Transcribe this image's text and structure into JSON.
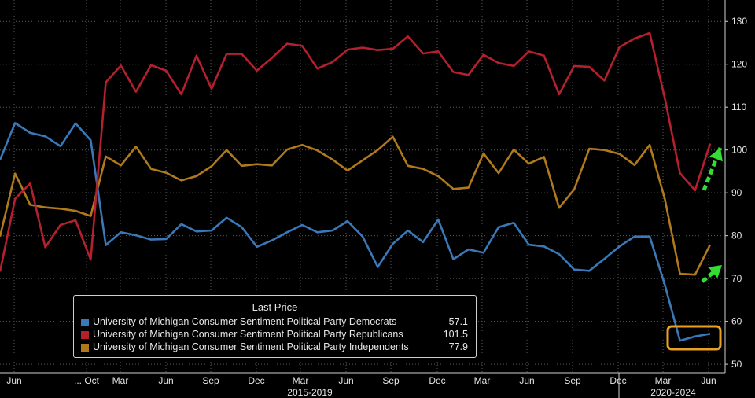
{
  "chart_data": {
    "type": "line",
    "ylim": [
      48,
      135
    ],
    "yticks": [
      50,
      60,
      70,
      80,
      90,
      100,
      110,
      120,
      130
    ],
    "grid": true,
    "legend_position": "bottom-left",
    "x_tick_labels": [
      "Jun",
      "... Oct",
      "Mar",
      "Jun",
      "Sep",
      "Dec",
      "Mar",
      "Jun",
      "Sep",
      "Dec",
      "Mar",
      "Jun",
      "Sep",
      "Dec",
      "Mar",
      "Jun"
    ],
    "x_period_labels": [
      "2015-2019",
      "2020-2024"
    ],
    "legend": {
      "title": "Last Price",
      "entries": [
        {
          "name": "University of Michigan Consumer Sentiment Political Party Democrats",
          "value": "57.1"
        },
        {
          "name": "University of Michigan Consumer Sentiment Political Party Republicans",
          "value": "101.5"
        },
        {
          "name": "University of Michigan Consumer Sentiment Political Party Independents",
          "value": "77.9"
        }
      ]
    },
    "series": [
      {
        "name": "University of Michigan Consumer Sentiment Political Party Democrats",
        "color": "#3a78b8",
        "values": [
          97.7,
          106.3,
          104,
          103.2,
          100.9,
          106.2,
          102.3,
          77.8,
          80.8,
          80.1,
          79.1,
          79.2,
          82.7,
          81,
          81.2,
          84.2,
          82,
          77.4,
          78.9,
          80.8,
          82.5,
          80.8,
          81.2,
          83.4,
          79.8,
          72.7,
          78.1,
          81.2,
          78.5,
          83.8,
          74.5,
          76.8,
          76,
          82,
          83,
          77.9,
          77.5,
          75.7,
          72.1,
          71.8,
          74.6,
          77.5,
          79.8,
          79.8,
          68.5,
          55.5,
          56.5,
          57.1
        ]
      },
      {
        "name": "University of Michigan Consumer Sentiment Political Party Republicans",
        "color": "#b4202e",
        "values": [
          71.6,
          88.6,
          92.2,
          77.3,
          82.5,
          83.6,
          74.4,
          115.8,
          119.7,
          113.6,
          119.8,
          118.5,
          113,
          122,
          114.3,
          122.4,
          122.4,
          118.5,
          121.5,
          124.8,
          124.3,
          119,
          120.5,
          123.4,
          123.9,
          123.3,
          123.6,
          126.5,
          122.5,
          123,
          118.2,
          117.5,
          122.2,
          120.3,
          119.6,
          123,
          122,
          113,
          119.6,
          119.4,
          116.2,
          124,
          126,
          127.3,
          112,
          94.6,
          90.6,
          101.5
        ]
      },
      {
        "name": "University of Michigan Consumer Sentiment Political Party Independents",
        "color": "#b07a1c",
        "values": [
          79.8,
          94.5,
          87.2,
          86.6,
          86.3,
          85.8,
          84.6,
          98.5,
          96.4,
          100.8,
          95.6,
          94.7,
          92.9,
          93.9,
          96.2,
          100,
          96.3,
          96.7,
          96.4,
          100.1,
          101.2,
          99.9,
          97.8,
          95.2,
          97.6,
          100,
          103.1,
          96.3,
          95.6,
          93.9,
          90.9,
          91.2,
          99.2,
          94.6,
          100.1,
          96.8,
          98.4,
          86.5,
          90.8,
          100.3,
          100,
          99.1,
          96.5,
          101.2,
          88.5,
          71.1,
          70.9,
          77.9
        ]
      }
    ],
    "annotations": [
      {
        "kind": "up-arrow",
        "color": "#33dd33"
      },
      {
        "kind": "up-arrow",
        "color": "#33dd33"
      },
      {
        "kind": "highlight-box",
        "color": "#e8a020"
      }
    ]
  }
}
